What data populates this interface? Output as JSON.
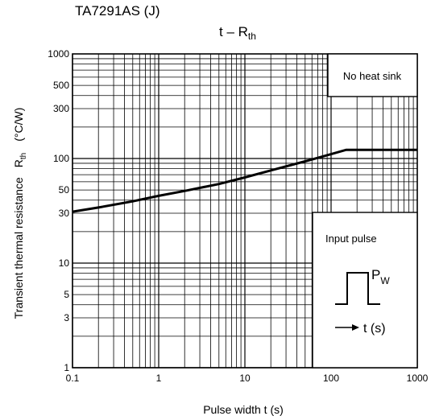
{
  "header": {
    "part_number": "TA7291AS (J)",
    "title_main": "t – R",
    "title_sub": "th"
  },
  "chart_data": {
    "type": "line",
    "title": "t – Rth",
    "xlabel": "Pulse width   t   (s)",
    "ylabel": "Transient thermal resistance   Rth   (°C/W)",
    "ylabel_parts": {
      "left": "Transient thermal resistance",
      "mid": "R",
      "mid_sub": "th",
      "unit": "(°C/W)"
    },
    "x_scale": "log",
    "y_scale": "log",
    "xlim": [
      0.1,
      1000
    ],
    "ylim": [
      1,
      1000
    ],
    "x_ticks": [
      {
        "value": 0.1,
        "label": "0.1"
      },
      {
        "value": 1,
        "label": "1"
      },
      {
        "value": 10,
        "label": "10"
      },
      {
        "value": 100,
        "label": "100"
      },
      {
        "value": 1000,
        "label": "1000"
      }
    ],
    "y_ticks": [
      {
        "value": 1,
        "label": "1"
      },
      {
        "value": 3,
        "label": "3"
      },
      {
        "value": 5,
        "label": "5"
      },
      {
        "value": 10,
        "label": "10"
      },
      {
        "value": 30,
        "label": "30"
      },
      {
        "value": 50,
        "label": "50"
      },
      {
        "value": 100,
        "label": "100"
      },
      {
        "value": 300,
        "label": "300"
      },
      {
        "value": 500,
        "label": "500"
      },
      {
        "value": 1000,
        "label": "1000"
      }
    ],
    "grid": true,
    "series": [
      {
        "name": "No heat sink",
        "x": [
          0.1,
          0.2,
          0.5,
          1,
          2,
          5,
          10,
          20,
          50,
          100,
          150,
          300,
          1000
        ],
        "y": [
          31,
          34,
          39,
          44,
          49,
          57,
          66,
          77,
          94,
          110,
          121,
          121,
          121
        ]
      }
    ],
    "annotations": {
      "no_heat_sink": "No heat sink",
      "input_pulse": "Input pulse",
      "pw_main": "P",
      "pw_sub": "W",
      "time_axis": "t (s)"
    }
  }
}
